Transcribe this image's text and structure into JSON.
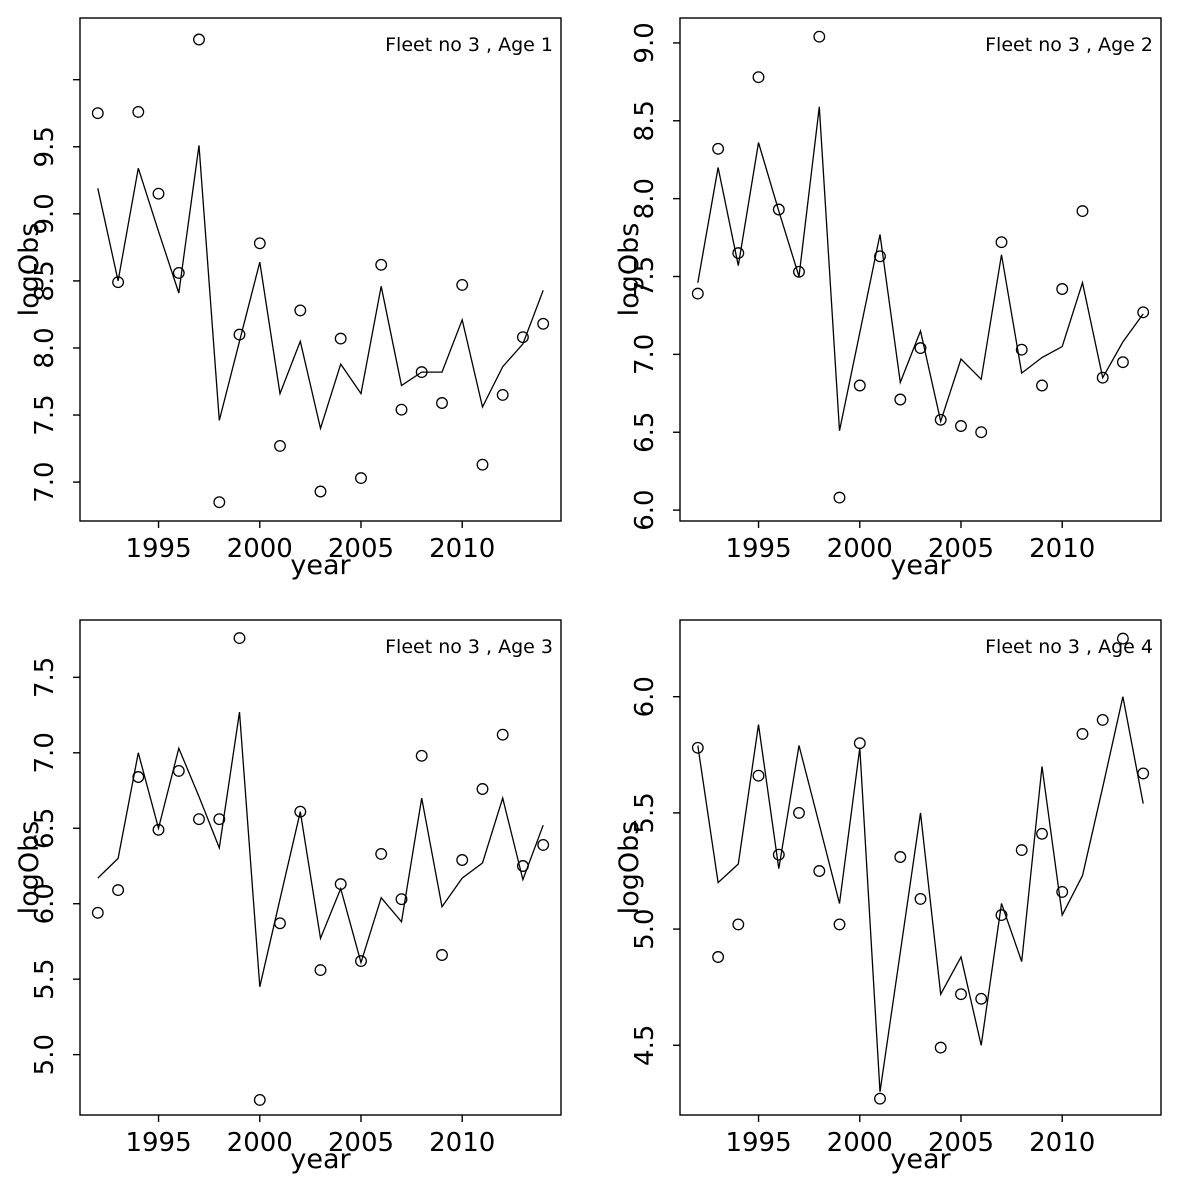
{
  "figure": {
    "background": "#ffffff",
    "foreground": "#000000",
    "layout_note": "2x2 grid of residual-style fit plots"
  },
  "chart_data": [
    {
      "type": "line",
      "title": "Fleet no 3 , Age 1",
      "xlabel": "year",
      "ylabel": "logObs",
      "xlim": [
        1991.12,
        2014.88
      ],
      "ylim": [
        6.71,
        10.46
      ],
      "xticks": [
        1995,
        2000,
        2005,
        2010
      ],
      "yticks": [
        7.0,
        7.5,
        8.0,
        8.5,
        9.0,
        9.5
      ],
      "ytick_labels": [
        "7.0",
        "7.5",
        "8.0",
        "8.5",
        "9.0",
        "9.5"
      ],
      "yticks_unlabeled": [
        10.0
      ],
      "grid": false,
      "legend": "none",
      "x": [
        1992,
        1993,
        1994,
        1995,
        1996,
        1997,
        1998,
        1999,
        2000,
        2001,
        2002,
        2003,
        2004,
        2005,
        2006,
        2007,
        2008,
        2009,
        2010,
        2011,
        2012,
        2013,
        2014
      ],
      "series": [
        {
          "name": "observed",
          "style": "open-circle-points",
          "color": "#000000",
          "values": [
            9.75,
            8.49,
            9.76,
            9.15,
            8.56,
            10.3,
            6.85,
            8.1,
            8.78,
            7.27,
            8.28,
            6.93,
            8.07,
            7.03,
            8.62,
            7.54,
            7.82,
            7.59,
            8.47,
            7.13,
            7.65,
            8.08,
            8.18
          ]
        },
        {
          "name": "fitted",
          "style": "solid-line",
          "color": "#000000",
          "values": [
            9.19,
            8.5,
            9.34,
            8.87,
            8.41,
            9.51,
            7.46,
            8.05,
            8.64,
            7.66,
            8.05,
            7.4,
            7.88,
            7.66,
            8.46,
            7.72,
            7.82,
            7.82,
            8.21,
            7.56,
            7.86,
            8.03,
            8.43
          ]
        }
      ]
    },
    {
      "type": "line",
      "title": "Fleet no 3 , Age 2",
      "xlabel": "year",
      "ylabel": "logObs",
      "xlim": [
        1991.12,
        2014.88
      ],
      "ylim": [
        5.93,
        9.16
      ],
      "xticks": [
        1995,
        2000,
        2005,
        2010
      ],
      "yticks": [
        6.0,
        6.5,
        7.0,
        7.5,
        8.0,
        8.5,
        9.0
      ],
      "ytick_labels": [
        "6.0",
        "6.5",
        "7.0",
        "7.5",
        "8.0",
        "8.5",
        "9.0"
      ],
      "yticks_unlabeled": [],
      "grid": false,
      "legend": "none",
      "x": [
        1992,
        1993,
        1994,
        1995,
        1996,
        1997,
        1998,
        1999,
        2000,
        2001,
        2002,
        2003,
        2004,
        2005,
        2006,
        2007,
        2008,
        2009,
        2010,
        2011,
        2012,
        2013,
        2014
      ],
      "series": [
        {
          "name": "observed",
          "style": "open-circle-points",
          "color": "#000000",
          "values": [
            7.39,
            8.32,
            7.65,
            8.78,
            7.93,
            7.53,
            9.04,
            6.08,
            6.8,
            7.63,
            6.71,
            7.04,
            6.58,
            6.54,
            6.5,
            7.72,
            7.03,
            6.8,
            7.42,
            7.92,
            6.85,
            6.95,
            7.27
          ]
        },
        {
          "name": "fitted",
          "style": "solid-line",
          "color": "#000000",
          "values": [
            7.46,
            8.2,
            7.57,
            8.36,
            7.92,
            7.5,
            8.59,
            6.51,
            7.14,
            7.77,
            6.82,
            7.15,
            6.57,
            6.97,
            6.84,
            7.64,
            6.88,
            6.98,
            7.05,
            7.46,
            6.85,
            7.08,
            7.26
          ]
        }
      ]
    },
    {
      "type": "line",
      "title": "Fleet no 3 , Age 3",
      "xlabel": "year",
      "ylabel": "logObs",
      "xlim": [
        1991.12,
        2014.88
      ],
      "ylim": [
        4.6,
        7.88
      ],
      "xticks": [
        1995,
        2000,
        2005,
        2010
      ],
      "yticks": [
        5.0,
        5.5,
        6.0,
        6.5,
        7.0,
        7.5
      ],
      "ytick_labels": [
        "5.0",
        "5.5",
        "6.0",
        "6.5",
        "7.0",
        "7.5"
      ],
      "yticks_unlabeled": [],
      "grid": false,
      "legend": "none",
      "x": [
        1992,
        1993,
        1994,
        1995,
        1996,
        1997,
        1998,
        1999,
        2000,
        2001,
        2002,
        2003,
        2004,
        2005,
        2006,
        2007,
        2008,
        2009,
        2010,
        2011,
        2012,
        2013,
        2014
      ],
      "series": [
        {
          "name": "observed",
          "style": "open-circle-points",
          "color": "#000000",
          "values": [
            5.94,
            6.09,
            6.84,
            6.49,
            6.88,
            6.56,
            6.56,
            7.76,
            4.7,
            5.87,
            6.61,
            5.56,
            6.13,
            5.62,
            6.33,
            6.03,
            6.98,
            5.66,
            6.29,
            6.76,
            7.12,
            6.25,
            6.39
          ]
        },
        {
          "name": "fitted",
          "style": "solid-line",
          "color": "#000000",
          "values": [
            6.17,
            6.3,
            7.0,
            6.5,
            7.03,
            6.71,
            6.37,
            7.27,
            5.45,
            6.03,
            6.61,
            5.77,
            6.1,
            5.61,
            6.04,
            5.88,
            6.7,
            5.98,
            6.17,
            6.27,
            6.7,
            6.16,
            6.52
          ]
        }
      ]
    },
    {
      "type": "line",
      "title": "Fleet no 3 , Age 4",
      "xlabel": "year",
      "ylabel": "logObs",
      "xlim": [
        1991.12,
        2014.88
      ],
      "ylim": [
        4.2,
        6.33
      ],
      "xticks": [
        1995,
        2000,
        2005,
        2010
      ],
      "yticks": [
        4.5,
        5.0,
        5.5,
        6.0
      ],
      "ytick_labels": [
        "4.5",
        "5.0",
        "5.5",
        "6.0"
      ],
      "yticks_unlabeled": [],
      "grid": false,
      "legend": "none",
      "x": [
        1992,
        1993,
        1994,
        1995,
        1996,
        1997,
        1998,
        1999,
        2000,
        2001,
        2002,
        2003,
        2004,
        2005,
        2006,
        2007,
        2008,
        2009,
        2010,
        2011,
        2012,
        2013,
        2014
      ],
      "series": [
        {
          "name": "observed",
          "style": "open-circle-points",
          "color": "#000000",
          "values": [
            5.78,
            4.88,
            5.02,
            5.66,
            5.32,
            5.5,
            5.25,
            5.02,
            5.8,
            4.27,
            5.31,
            5.13,
            4.49,
            4.72,
            4.7,
            5.06,
            5.34,
            5.41,
            5.16,
            5.84,
            5.9,
            6.25,
            5.67
          ]
        },
        {
          "name": "fitted",
          "style": "solid-line",
          "color": "#000000",
          "values": [
            5.79,
            5.2,
            5.28,
            5.88,
            5.26,
            5.79,
            5.45,
            5.11,
            5.78,
            4.3,
            4.9,
            5.5,
            4.72,
            4.88,
            4.5,
            5.11,
            4.86,
            5.7,
            5.06,
            5.23,
            5.61,
            6.0,
            5.54
          ]
        }
      ]
    }
  ]
}
